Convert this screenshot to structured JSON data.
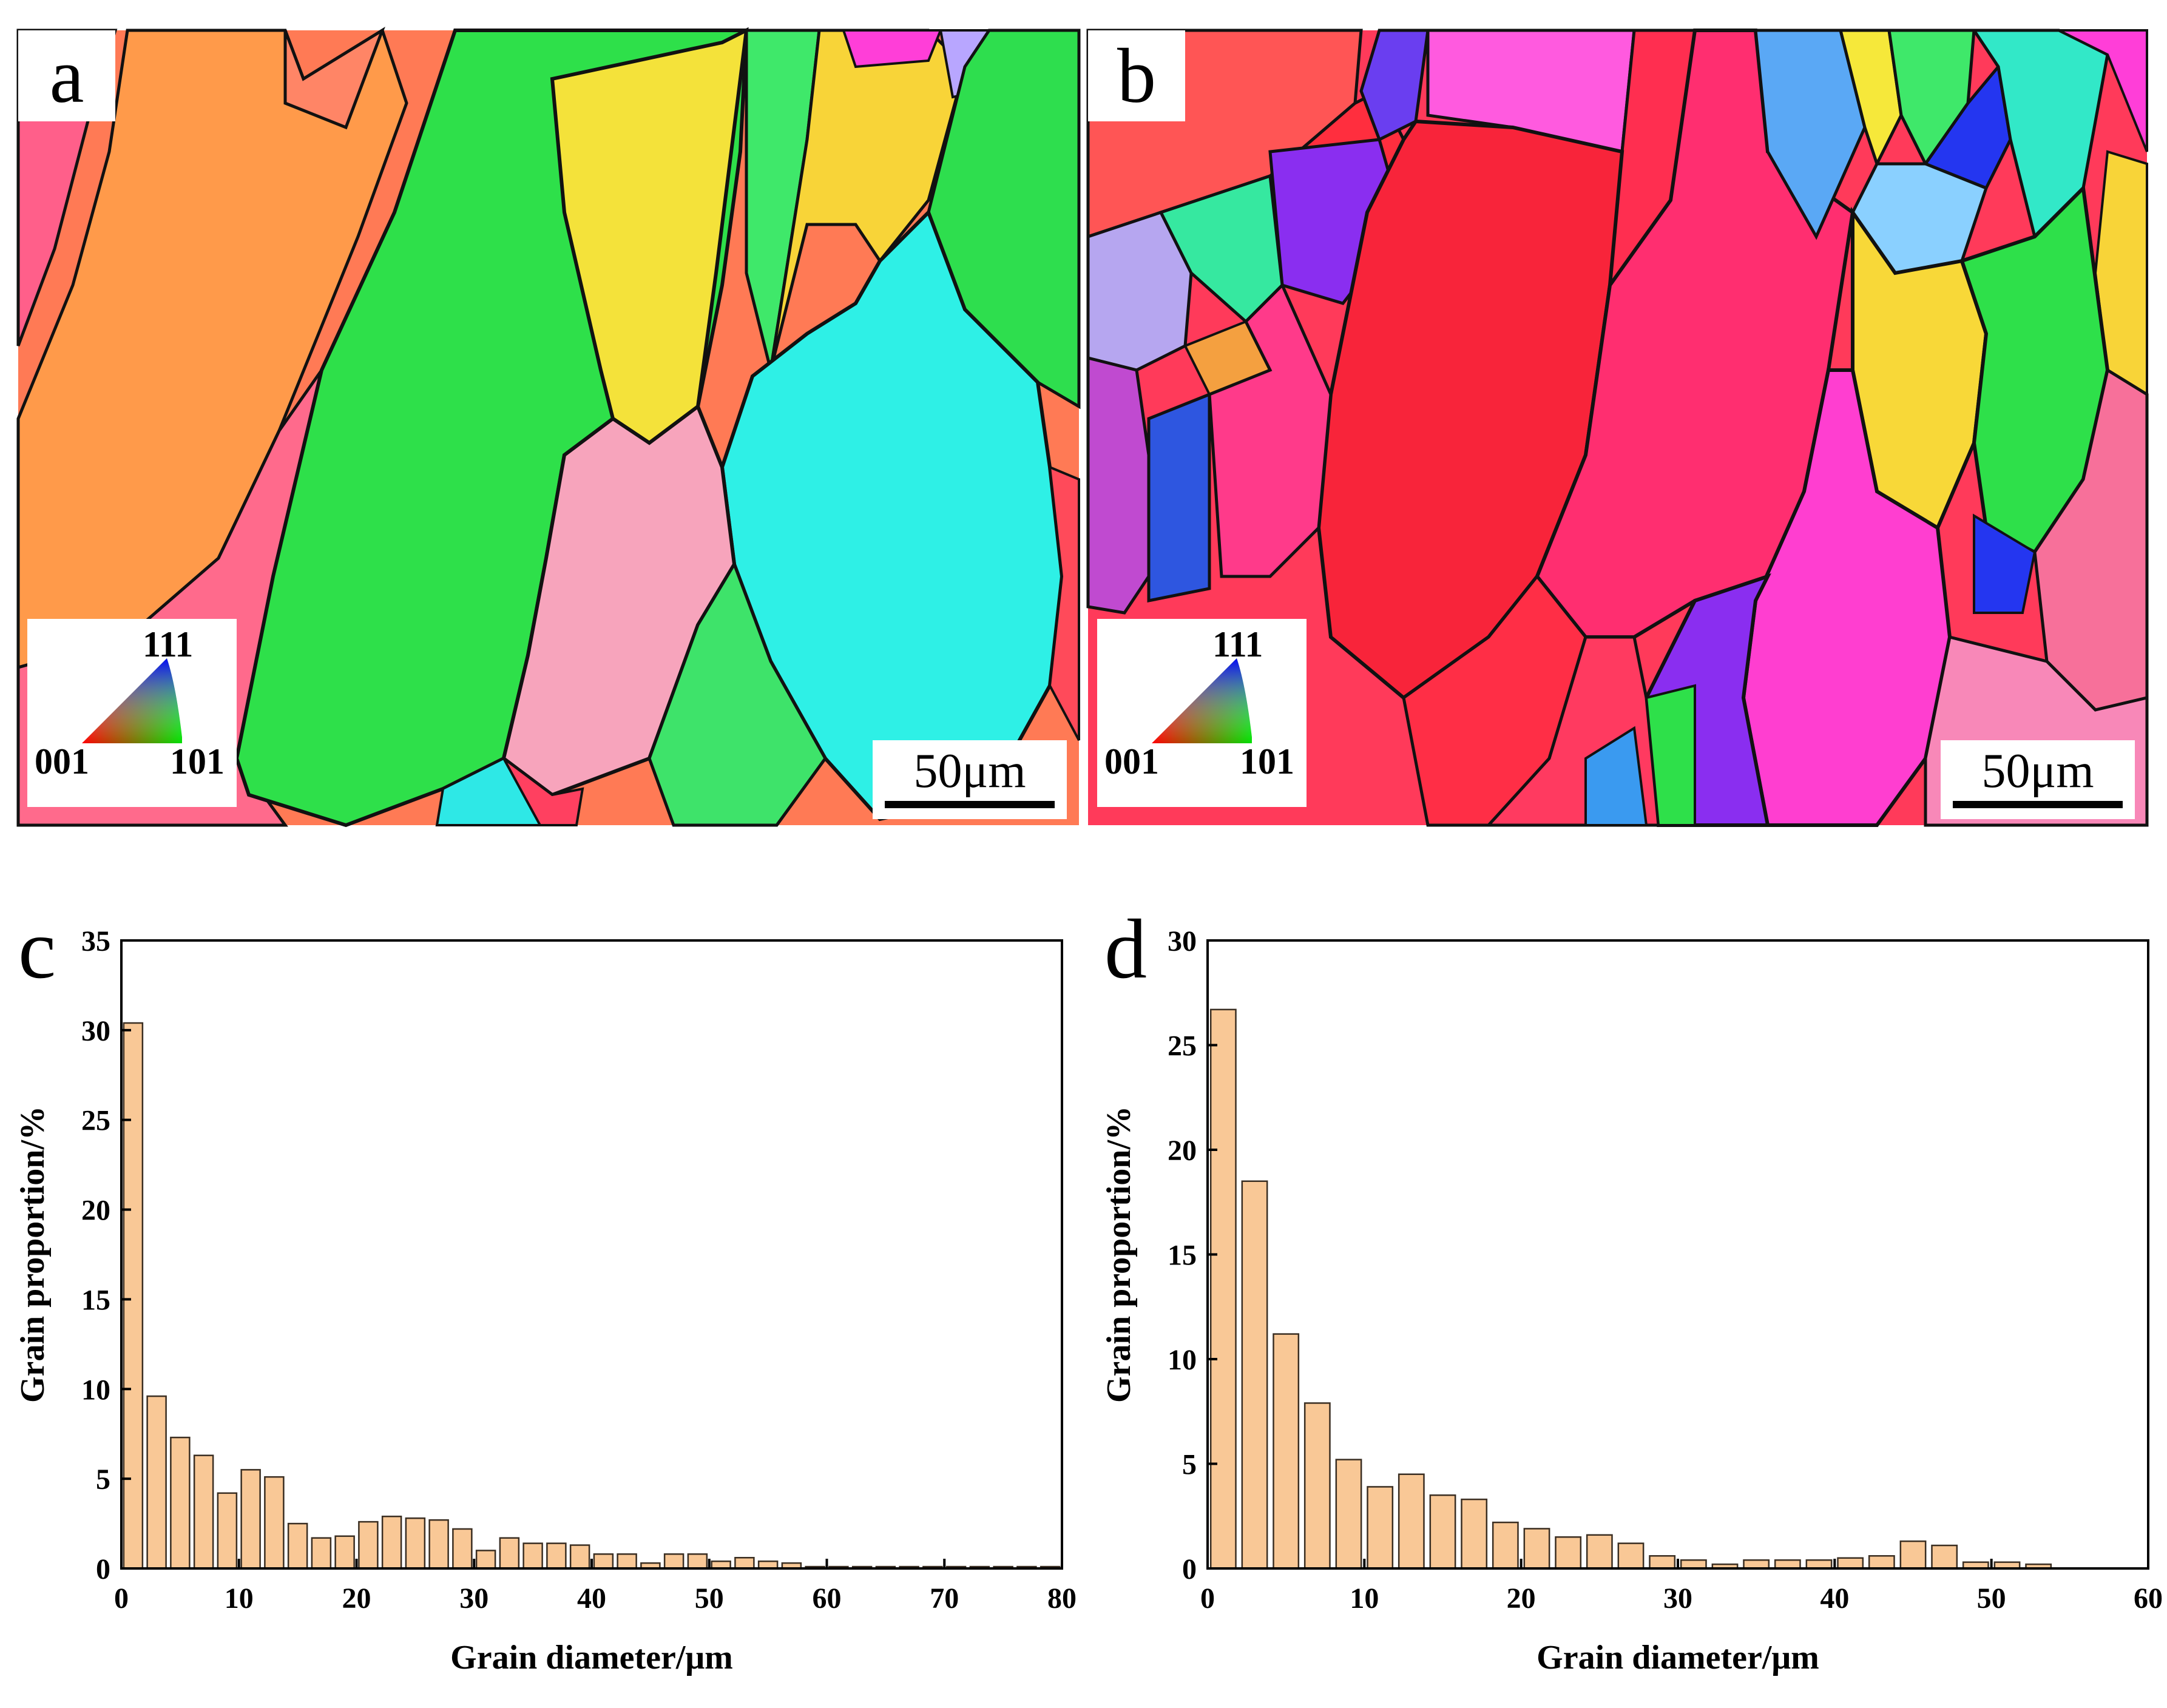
{
  "panels": {
    "a": {
      "letter": "a",
      "scale_label": "50μm",
      "legend": {
        "top": "111",
        "left": "001",
        "right": "101"
      }
    },
    "b": {
      "letter": "b",
      "scale_label": "50μm",
      "legend": {
        "top": "111",
        "left": "001",
        "right": "101"
      }
    },
    "c": {
      "letter": "c"
    },
    "d": {
      "letter": "d"
    }
  },
  "chart_data": [
    {
      "id": "c",
      "type": "bar",
      "title": "",
      "xlabel": "Grain diameter/μm",
      "ylabel": "Grain proportion/%",
      "xlim": [
        0,
        80
      ],
      "ylim": [
        0,
        35
      ],
      "xticks": [
        0,
        10,
        20,
        30,
        40,
        50,
        60,
        70,
        80
      ],
      "yticks": [
        0,
        5,
        10,
        15,
        20,
        25,
        30,
        35
      ],
      "bin_width": 2,
      "x": [
        1,
        3,
        5,
        7,
        9,
        11,
        13,
        15,
        17,
        19,
        21,
        23,
        25,
        27,
        29,
        31,
        33,
        35,
        37,
        39,
        41,
        43,
        45,
        47,
        49,
        51,
        53,
        55,
        57,
        59,
        61,
        63,
        65,
        67,
        69,
        71,
        73,
        75,
        77,
        79
      ],
      "values": [
        30.4,
        9.6,
        7.3,
        6.3,
        4.2,
        5.5,
        5.1,
        2.5,
        1.7,
        1.8,
        2.6,
        2.9,
        2.8,
        2.7,
        2.2,
        1.0,
        1.7,
        1.4,
        1.4,
        1.3,
        0.8,
        0.8,
        0.3,
        0.8,
        0.8,
        0.4,
        0.6,
        0.4,
        0.3,
        0.1,
        0.1,
        0.1,
        0.1,
        0.1,
        0.1,
        0.1,
        0.1,
        0.1,
        0.1,
        0.1
      ],
      "bar_color": "#f9c896",
      "edge_color": "#3a2e22"
    },
    {
      "id": "d",
      "type": "bar",
      "title": "",
      "xlabel": "Grain diameter/μm",
      "ylabel": "Grain proportion/%",
      "xlim": [
        0,
        60
      ],
      "ylim": [
        0,
        30
      ],
      "xticks": [
        0,
        10,
        20,
        30,
        40,
        50,
        60
      ],
      "yticks": [
        0,
        5,
        10,
        15,
        20,
        25,
        30
      ],
      "bin_width": 2,
      "x": [
        1,
        3,
        5,
        7,
        9,
        11,
        13,
        15,
        17,
        19,
        21,
        23,
        25,
        27,
        29,
        31,
        33,
        35,
        37,
        39,
        41,
        43,
        45,
        47,
        49,
        51,
        53
      ],
      "values": [
        26.7,
        18.5,
        11.2,
        7.9,
        5.2,
        3.9,
        4.5,
        3.5,
        3.3,
        2.2,
        1.9,
        1.5,
        1.6,
        1.2,
        0.6,
        0.4,
        0.2,
        0.4,
        0.4,
        0.4,
        0.5,
        0.6,
        1.3,
        1.1,
        0.3,
        0.3,
        0.2
      ],
      "bar_color": "#f9c896",
      "edge_color": "#3a2e22"
    }
  ]
}
